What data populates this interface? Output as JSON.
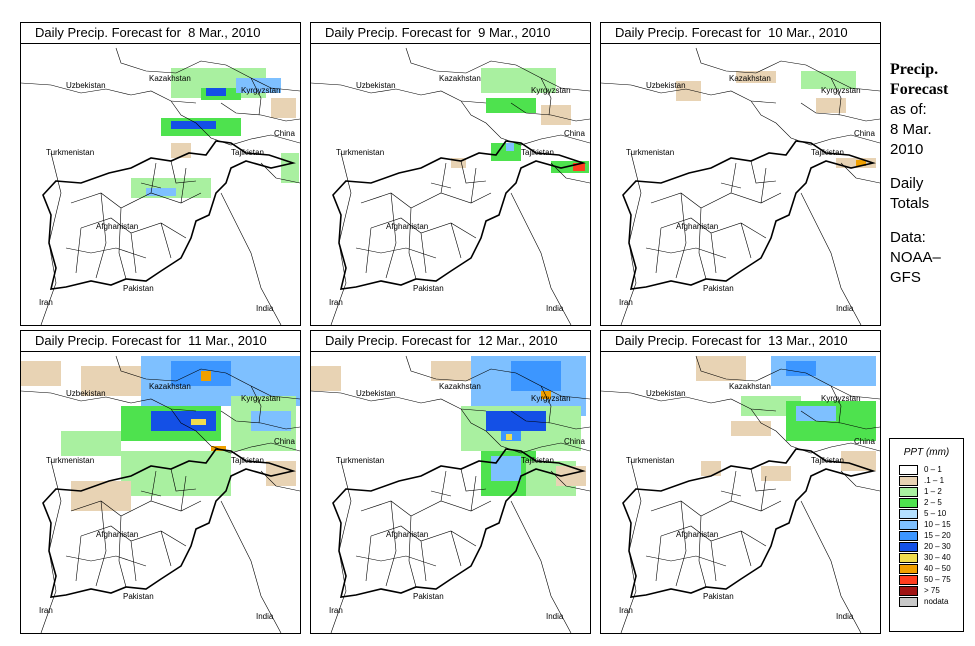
{
  "panels": [
    {
      "title": "Daily Precip. Forecast for  8 Mar., 2010"
    },
    {
      "title": "Daily Precip. Forecast for  9 Mar., 2010"
    },
    {
      "title": "Daily Precip. Forecast for  10 Mar., 2010"
    },
    {
      "title": "Daily Precip. Forecast for  11 Mar., 2010"
    },
    {
      "title": "Daily Precip. Forecast for  12 Mar., 2010"
    },
    {
      "title": "Daily Precip. Forecast for  13 Mar., 2010"
    }
  ],
  "map_labels": {
    "uzbekistan": "Uzbekistan",
    "kazakhstan": "Kazakhstan",
    "kyrgyzstan": "Kyrgyzstan",
    "china": "China",
    "turkmenistan": "Turkmenistan",
    "tajikistan": "Tajikistan",
    "afghanistan": "Afghanistan",
    "iran": "Iran",
    "pakistan": "Pakistan",
    "india": "India"
  },
  "side_text": {
    "heading_1": "Precip.",
    "heading_2": "Forecast",
    "asof_1": "as of:",
    "asof_2": "8 Mar.",
    "asof_3": "2010",
    "daily_1": "Daily",
    "daily_2": "Totals",
    "data_1": "Data:",
    "data_2": "NOAA–",
    "data_3": "GFS"
  },
  "legend": {
    "title": "PPT (mm)",
    "items": [
      {
        "label": "0 – 1",
        "color": "#ffffff"
      },
      {
        "label": ".1 – 1",
        "color": "#e8d3b4"
      },
      {
        "label": "1 – 2",
        "color": "#a9f0a0"
      },
      {
        "label": "2 – 5",
        "color": "#4ee24e"
      },
      {
        "label": "5 – 10",
        "color": "#b4e0ff"
      },
      {
        "label": "10 – 15",
        "color": "#7ec0ff"
      },
      {
        "label": "15 – 20",
        "color": "#3c96ff"
      },
      {
        "label": "20 – 30",
        "color": "#1450e6"
      },
      {
        "label": "30 – 40",
        "color": "#f0dc4e"
      },
      {
        "label": "40 – 50",
        "color": "#f0a000"
      },
      {
        "label": "50 – 75",
        "color": "#ff3c1e"
      },
      {
        "label": "> 75",
        "color": "#a01414"
      },
      {
        "label": "nodata",
        "color": "#c8c8c8"
      }
    ]
  }
}
